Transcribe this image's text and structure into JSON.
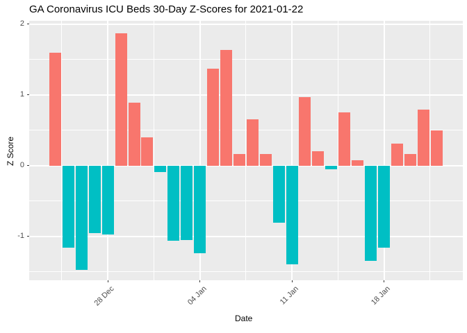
{
  "chart_data": {
    "type": "bar",
    "title": "GA Coronavirus ICU Beds 30-Day Z-Scores for 2021-01-22",
    "xlabel": "Date",
    "ylabel": "Z Score",
    "x": [
      "2020-12-24",
      "2020-12-25",
      "2020-12-26",
      "2020-12-27",
      "2020-12-28",
      "2020-12-29",
      "2020-12-30",
      "2020-12-31",
      "2021-01-01",
      "2021-01-02",
      "2021-01-03",
      "2021-01-04",
      "2021-01-05",
      "2021-01-06",
      "2021-01-07",
      "2021-01-08",
      "2021-01-09",
      "2021-01-10",
      "2021-01-11",
      "2021-01-12",
      "2021-01-13",
      "2021-01-14",
      "2021-01-15",
      "2021-01-16",
      "2021-01-17",
      "2021-01-18",
      "2021-01-19",
      "2021-01-20",
      "2021-01-21",
      "2021-01-22"
    ],
    "values": [
      1.6,
      -1.16,
      -1.47,
      -0.95,
      -0.97,
      1.87,
      0.89,
      0.4,
      -0.09,
      -1.06,
      -1.05,
      -1.24,
      1.37,
      1.64,
      0.17,
      0.66,
      0.17,
      -0.8,
      -1.39,
      0.97,
      0.21,
      -0.05,
      0.75,
      0.08,
      -1.34,
      -1.16,
      0.31,
      0.17,
      0.79,
      0.5
    ],
    "ylim": [
      -1.618,
      2.049
    ],
    "y_ticks": [
      2,
      1,
      0,
      -1
    ],
    "y_minor_ticks": [
      1.5,
      0.5,
      -0.5,
      -1.5
    ],
    "x_ticks": [
      {
        "label": "28 Dec",
        "day_index": 4
      },
      {
        "label": "04 Jan",
        "day_index": 11
      },
      {
        "label": "11 Jan",
        "day_index": 18
      },
      {
        "label": "18 Jan",
        "day_index": 25
      }
    ],
    "x_minor_day_indices": [
      0.5,
      7.5,
      14.5,
      21.5,
      28.5
    ],
    "grid": true,
    "legend_position": "none",
    "colors": {
      "positive_bar": "#F8766D",
      "negative_bar": "#00BFC4",
      "panel_background": "#EBEBEB",
      "gridline": "#FFFFFF",
      "tick_label": "#4D4D4D",
      "title": "#000000",
      "axis_title": "#000000"
    }
  }
}
